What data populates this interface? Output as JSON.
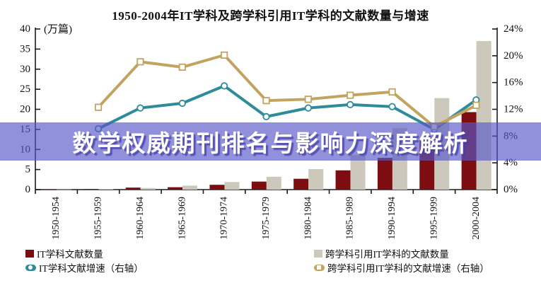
{
  "title": "1950-2004年IT学科及跨学科引用IT学科的文献数量与增速",
  "banner": {
    "text": "数学权威期刊排名与影响力深度解析",
    "bg_color": "#5858C8",
    "text_color": "#FFFFFF"
  },
  "chart_data": {
    "type": "combo-bar-line",
    "title": "1950-2004年IT学科及跨学科引用IT学科的文献数量与增速",
    "categories": [
      "1950-1954",
      "1955-1959",
      "1960-1964",
      "1965-1969",
      "1970-1974",
      "1975-1979",
      "1980-1984",
      "1985-1989",
      "1990-1994",
      "1995-1999",
      "2000-2004"
    ],
    "left_axis": {
      "unit": "(万篇)",
      "min": 0,
      "max": 40,
      "ticks": [
        0,
        5,
        10,
        15,
        20,
        25,
        30,
        35,
        40
      ]
    },
    "right_axis": {
      "min": 0,
      "max": 24,
      "ticks": [
        "0%",
        "4%",
        "8%",
        "12%",
        "16%",
        "20%",
        "24%"
      ]
    },
    "bar_series": [
      {
        "name": "IT学科文献数量",
        "color": "#7E0D11",
        "axis": "left",
        "values": [
          0.05,
          0.15,
          0.5,
          0.6,
          1.2,
          2.0,
          2.7,
          4.8,
          7.9,
          12.9,
          19.3
        ]
      },
      {
        "name": "跨学科引用IT学科的文献数量",
        "color": "#CCC9BC",
        "axis": "left",
        "values": [
          0.05,
          0.15,
          0.4,
          1.0,
          1.9,
          3.2,
          5.1,
          8.6,
          15.3,
          22.8,
          37.0
        ]
      }
    ],
    "line_series": [
      {
        "name": "IT学科文献增速（右轴）",
        "color": "#2E8B99",
        "marker": "circle",
        "axis": "right",
        "values_pct": [
          null,
          9.1,
          12.2,
          12.9,
          15.5,
          10.9,
          12.2,
          12.7,
          12.4,
          9.0,
          13.4
        ]
      },
      {
        "name": "跨学科引用IT学科的文献增速（右轴）",
        "color": "#C3A35F",
        "marker": "square",
        "axis": "right",
        "values_pct": [
          null,
          12.3,
          19.1,
          18.3,
          20.1,
          13.3,
          13.5,
          14.1,
          14.6,
          9.4,
          12.6
        ]
      }
    ],
    "legend_position": "bottom",
    "grid": false
  },
  "legend": {
    "items": [
      {
        "label": "IT学科文献数量",
        "swatch": "square",
        "marker": "none",
        "color": "#7E0D11"
      },
      {
        "label": "跨学科引用IT学科的文献数量",
        "swatch": "square",
        "marker": "none",
        "color": "#CCC9BC"
      },
      {
        "label": "IT学科文献增速（右轴）",
        "swatch": "line",
        "marker": "circle",
        "color": "#2E8B99"
      },
      {
        "label": "跨学科引用IT学科的文献增速（右轴）",
        "swatch": "line",
        "marker": "square",
        "color": "#C3A35F"
      }
    ]
  }
}
